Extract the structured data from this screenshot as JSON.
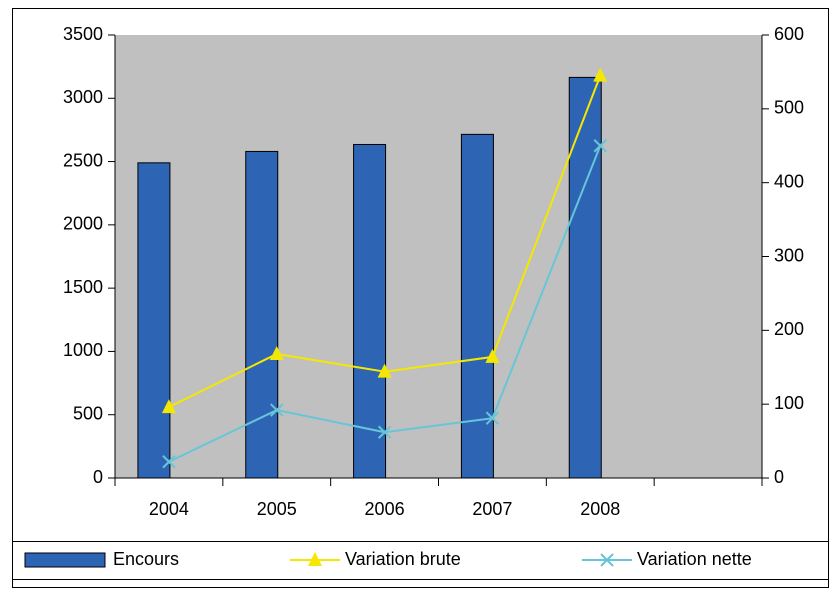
{
  "chart_data": {
    "type": "bar",
    "categories": [
      "2004",
      "2005",
      "2006",
      "2007",
      "2008",
      null
    ],
    "series": [
      {
        "name": "Encours",
        "type": "bar",
        "color": "#2e64b4",
        "axis": "y",
        "values": [
          2490,
          2580,
          2635,
          2715,
          3165,
          null
        ]
      },
      {
        "name": "Variation brute",
        "type": "line",
        "marker": "triangle",
        "color": "#f5e800",
        "axis": "y2",
        "values": [
          96,
          168,
          144,
          164,
          545,
          null
        ]
      },
      {
        "name": "Variation nette",
        "type": "line",
        "marker": "x",
        "color": "#66c6d8",
        "axis": "y2",
        "values": [
          22,
          92,
          62,
          81,
          450,
          null
        ]
      }
    ],
    "ylim": [
      0,
      3500
    ],
    "yticks": [
      0,
      500,
      1000,
      1500,
      2000,
      2500,
      3000,
      3500
    ],
    "y2lim": [
      0,
      600
    ],
    "y2ticks": [
      0,
      100,
      200,
      300,
      400,
      500,
      600
    ],
    "plot_background": "#c0c0c0",
    "legend": "bottom"
  }
}
